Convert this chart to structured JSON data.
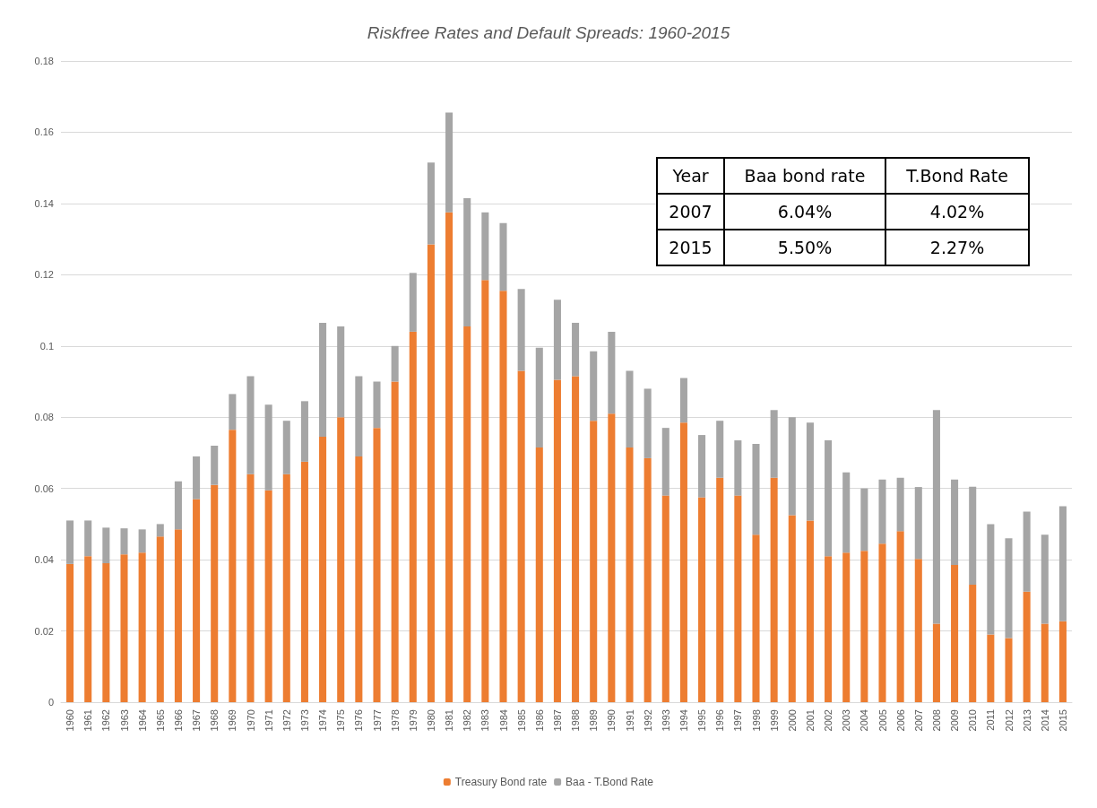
{
  "chart_data": {
    "type": "bar",
    "title": "Riskfree Rates and Default Spreads: 1960-2015",
    "stacked": true,
    "categories": [
      "1960",
      "1961",
      "1962",
      "1963",
      "1964",
      "1965",
      "1966",
      "1967",
      "1968",
      "1969",
      "1970",
      "1971",
      "1972",
      "1973",
      "1974",
      "1975",
      "1976",
      "1977",
      "1978",
      "1979",
      "1980",
      "1981",
      "1982",
      "1983",
      "1984",
      "1985",
      "1986",
      "1987",
      "1988",
      "1989",
      "1990",
      "1991",
      "1992",
      "1993",
      "1994",
      "1995",
      "1996",
      "1997",
      "1998",
      "1999",
      "2000",
      "2001",
      "2002",
      "2003",
      "2004",
      "2005",
      "2006",
      "2007",
      "2008",
      "2009",
      "2010",
      "2011",
      "2012",
      "2013",
      "2014",
      "2015"
    ],
    "series": [
      {
        "name": "Treasury Bond rate",
        "color": "#ed7d31",
        "values": [
          0.0388,
          0.041,
          0.039,
          0.0415,
          0.042,
          0.0465,
          0.0485,
          0.057,
          0.061,
          0.0765,
          0.064,
          0.0595,
          0.064,
          0.0675,
          0.0745,
          0.08,
          0.069,
          0.077,
          0.09,
          0.104,
          0.1285,
          0.1375,
          0.1055,
          0.1185,
          0.1155,
          0.093,
          0.0715,
          0.0905,
          0.0915,
          0.079,
          0.081,
          0.0715,
          0.0685,
          0.058,
          0.0785,
          0.0575,
          0.063,
          0.058,
          0.047,
          0.063,
          0.0525,
          0.051,
          0.041,
          0.042,
          0.0425,
          0.0445,
          0.048,
          0.0402,
          0.022,
          0.0385,
          0.033,
          0.019,
          0.018,
          0.031,
          0.022,
          0.0227
        ]
      },
      {
        "name": "Baa - T.Bond Rate",
        "color": "#a5a5a5",
        "values": [
          0.0122,
          0.01,
          0.01,
          0.0073,
          0.0065,
          0.0035,
          0.0135,
          0.012,
          0.011,
          0.01,
          0.0275,
          0.024,
          0.015,
          0.017,
          0.032,
          0.0255,
          0.0225,
          0.013,
          0.01,
          0.0165,
          0.023,
          0.028,
          0.036,
          0.019,
          0.019,
          0.023,
          0.028,
          0.0225,
          0.015,
          0.0195,
          0.023,
          0.0215,
          0.0195,
          0.019,
          0.0125,
          0.0175,
          0.016,
          0.0155,
          0.0255,
          0.019,
          0.0275,
          0.0275,
          0.0325,
          0.0225,
          0.0175,
          0.018,
          0.015,
          0.0202,
          0.06,
          0.024,
          0.0275,
          0.031,
          0.028,
          0.0225,
          0.025,
          0.0323
        ]
      }
    ],
    "ylim": [
      0,
      0.18
    ],
    "yticks": [
      0,
      0.02,
      0.04,
      0.06,
      0.08,
      0.1,
      0.12,
      0.14,
      0.16,
      0.18
    ],
    "grid": "y",
    "legend": "bottom",
    "annotations": [
      "Year",
      "Baa bond rate",
      "T.Bond Rate",
      "2007",
      "6.04%",
      "4.02%",
      "2015",
      "5.50%",
      "2.27%"
    ]
  }
}
